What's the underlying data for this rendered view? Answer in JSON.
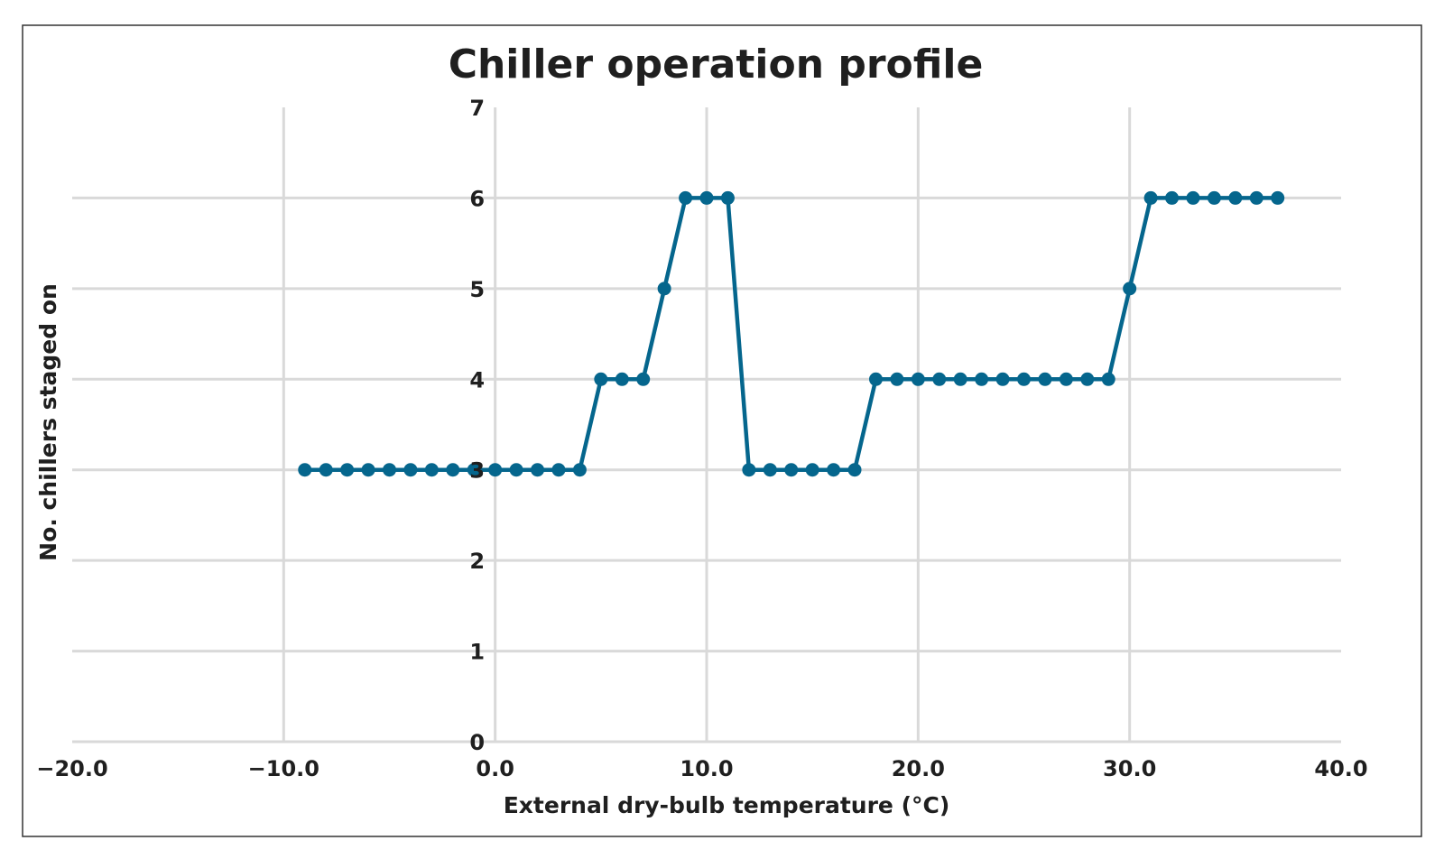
{
  "chart_data": {
    "type": "line",
    "title": "Chiller operation profile",
    "xlabel": "External dry-bulb temperature (°C)",
    "ylabel": "No. chillers staged on",
    "xlim": [
      -20,
      40
    ],
    "ylim": [
      0,
      7
    ],
    "x_ticks": [
      -20,
      -10,
      0,
      10,
      20,
      30,
      40
    ],
    "x_tick_labels": [
      "−20.0",
      "−10.0",
      "0.0",
      "10.0",
      "20.0",
      "30.0",
      "40.0"
    ],
    "y_ticks": [
      0,
      1,
      2,
      3,
      4,
      5,
      6,
      7
    ],
    "y_tick_labels": [
      "0",
      "1",
      "2",
      "3",
      "4",
      "5",
      "6",
      "7"
    ],
    "grid": true,
    "legend": "none",
    "line_color": "#05668d",
    "grid_color": "#d9d9d9",
    "series": [
      {
        "x": [
          -9,
          -8,
          -7,
          -6,
          -5,
          -4,
          -3,
          -2,
          -1,
          0,
          1,
          2,
          3,
          4,
          5,
          6,
          7,
          8,
          9,
          10,
          11,
          12,
          13,
          14,
          15,
          16,
          17,
          18,
          19,
          20,
          21,
          22,
          23,
          24,
          25,
          26,
          27,
          28,
          29,
          30,
          31,
          32,
          33,
          34,
          35,
          36,
          37
        ],
        "values": [
          3,
          3,
          3,
          3,
          3,
          3,
          3,
          3,
          3,
          3,
          3,
          3,
          3,
          3,
          4,
          4,
          4,
          5,
          6,
          6,
          6,
          3,
          3,
          3,
          3,
          3,
          3,
          4,
          4,
          4,
          4,
          4,
          4,
          4,
          4,
          4,
          4,
          4,
          4,
          5,
          6,
          6,
          6,
          6,
          6,
          6,
          6
        ]
      }
    ]
  }
}
